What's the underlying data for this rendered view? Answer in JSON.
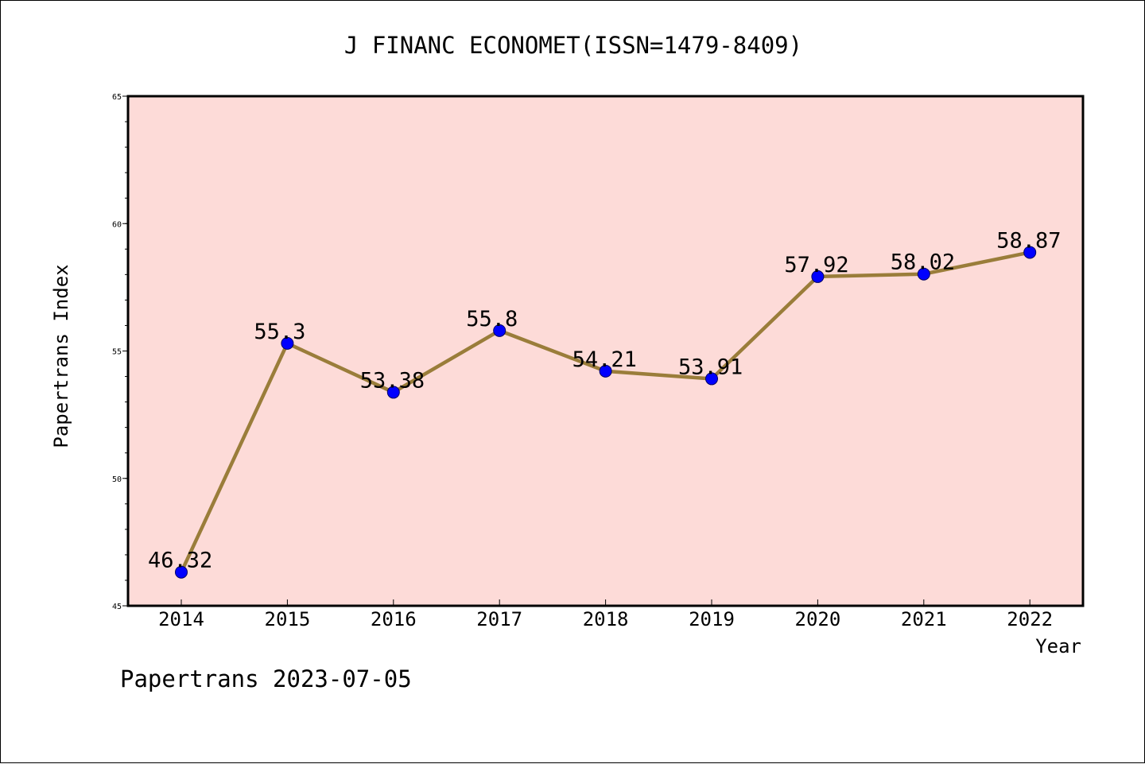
{
  "chart_data": {
    "type": "line",
    "title": "J FINANC ECONOMET(ISSN=1479-8409)",
    "xlabel": "Year",
    "ylabel": "Papertrans Index",
    "categories": [
      "2014",
      "2015",
      "2016",
      "2017",
      "2018",
      "2019",
      "2020",
      "2021",
      "2022"
    ],
    "series": [
      {
        "values": [
          46.32,
          55.3,
          53.38,
          55.8,
          54.21,
          53.91,
          57.92,
          58.02,
          58.87
        ],
        "labels": [
          "46.32",
          "55.3",
          "53.38",
          "55.8",
          "54.21",
          "53.91",
          "57.92",
          "58.02",
          "58.87"
        ]
      }
    ],
    "ylim": [
      45,
      65
    ],
    "yticks": [
      45,
      50,
      55,
      60,
      65
    ],
    "grid": false,
    "colors": {
      "plot_background": "#fddbd8",
      "line": "#9a7d3a",
      "marker": "#0000ff"
    }
  },
  "footer": "Papertrans 2023-07-05"
}
